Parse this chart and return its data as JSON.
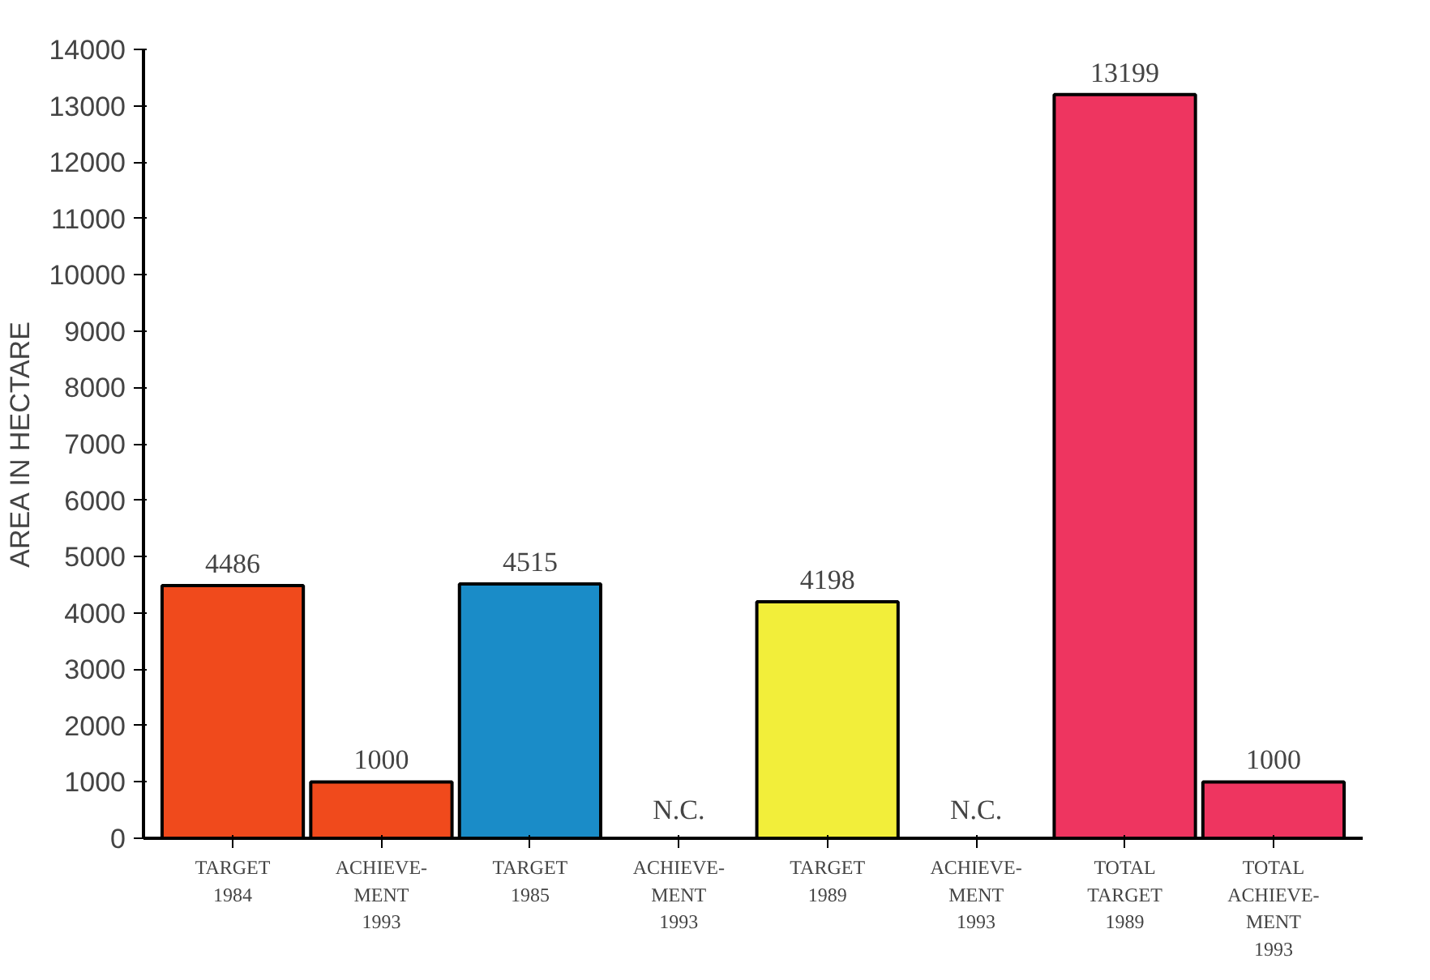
{
  "chart_data": {
    "type": "bar",
    "ylabel": "AREA IN HECTARE",
    "categories": [
      "TARGET\n1984",
      "ACHIEVE-\nMENT\n1993",
      "TARGET\n1985",
      "ACHIEVE-\nMENT\n1993",
      "TARGET\n1989",
      "ACHIEVE-\nMENT\n1993",
      "TOTAL\nTARGET\n1989",
      "TOTAL\nACHIEVE-\nMENT\n1993"
    ],
    "values": [
      4486,
      1000,
      4515,
      null,
      4198,
      null,
      13199,
      1000
    ],
    "colors": [
      "#f04a1c",
      "#f04a1c",
      "#1a8cc8",
      "#1a8cc8",
      "#f2ee3a",
      "#f2ee3a",
      "#ee3560",
      "#ee3560"
    ],
    "value_labels": [
      "4486",
      "1000",
      "4515",
      "N.C.",
      "4198",
      "N.C.",
      "13199",
      "1000"
    ],
    "ylim": [
      0,
      14000
    ],
    "yticks": [
      0,
      1000,
      2000,
      3000,
      4000,
      5000,
      6000,
      7000,
      8000,
      9000,
      10000,
      11000,
      12000,
      13000,
      14000
    ],
    "grid": false
  }
}
